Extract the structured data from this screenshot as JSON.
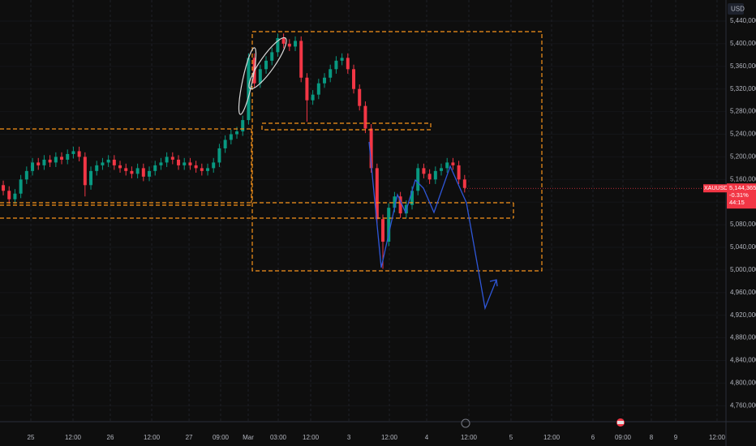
{
  "chart_data": {
    "type": "candlestick",
    "currency": "USD",
    "symbol": "XAUUSD",
    "last_price": {
      "value": 5144.365,
      "label": "5,144,365"
    },
    "change": "-0.31%",
    "countdown": "44:15",
    "up_color": "#089981",
    "down_color": "#f23645",
    "grid": true,
    "open": [
      5150,
      5140,
      5125,
      5135,
      5160,
      5175,
      5190,
      5185,
      5195,
      5190,
      5200,
      5195,
      5205,
      5210,
      5200,
      5150,
      5175,
      5185,
      5190,
      5195,
      5185,
      5180,
      5175,
      5170,
      5180,
      5165,
      5175,
      5185,
      5190,
      5200,
      5195,
      5185,
      5190,
      5185,
      5180,
      5175,
      5180,
      5190,
      5215,
      5230,
      5240,
      5245,
      5265,
      5375,
      5330,
      5355,
      5370,
      5385,
      5410,
      5400,
      5395,
      5405,
      5340,
      5300,
      5310,
      5330,
      5340,
      5355,
      5370,
      5375,
      5355,
      5320,
      5290,
      5250,
      5180,
      5090,
      5050,
      5110,
      5130,
      5100,
      5115,
      5140,
      5180,
      5170,
      5160,
      5175,
      5180,
      5190,
      5185,
      5160
    ],
    "high": [
      5158,
      5148,
      5143,
      5168,
      5183,
      5198,
      5198,
      5203,
      5203,
      5208,
      5208,
      5213,
      5218,
      5218,
      5208,
      5183,
      5193,
      5198,
      5203,
      5203,
      5193,
      5188,
      5183,
      5188,
      5188,
      5183,
      5193,
      5198,
      5208,
      5208,
      5203,
      5198,
      5198,
      5193,
      5188,
      5188,
      5198,
      5223,
      5238,
      5248,
      5253,
      5273,
      5383,
      5383,
      5363,
      5378,
      5393,
      5418,
      5418,
      5408,
      5413,
      5413,
      5348,
      5318,
      5338,
      5348,
      5363,
      5378,
      5383,
      5383,
      5363,
      5328,
      5298,
      5258,
      5188,
      5098,
      5118,
      5138,
      5138,
      5123,
      5148,
      5188,
      5188,
      5178,
      5183,
      5188,
      5198,
      5198,
      5193,
      5168
    ],
    "low": [
      5132,
      5117,
      5117,
      5127,
      5152,
      5167,
      5177,
      5177,
      5182,
      5182,
      5187,
      5187,
      5197,
      5192,
      5130,
      5142,
      5167,
      5177,
      5182,
      5177,
      5172,
      5167,
      5162,
      5162,
      5157,
      5157,
      5167,
      5177,
      5182,
      5187,
      5177,
      5177,
      5177,
      5172,
      5167,
      5167,
      5172,
      5182,
      5207,
      5222,
      5232,
      5237,
      5257,
      5322,
      5322,
      5347,
      5362,
      5377,
      5392,
      5387,
      5387,
      5332,
      5262,
      5292,
      5302,
      5322,
      5332,
      5347,
      5362,
      5347,
      5312,
      5282,
      5242,
      5172,
      5082,
      5002,
      5042,
      5102,
      5092,
      5092,
      5107,
      5132,
      5162,
      5152,
      5152,
      5167,
      5172,
      5177,
      5152,
      5137
    ],
    "close": [
      5140,
      5125,
      5135,
      5160,
      5175,
      5190,
      5185,
      5195,
      5190,
      5200,
      5195,
      5205,
      5210,
      5200,
      5150,
      5175,
      5185,
      5190,
      5195,
      5185,
      5180,
      5175,
      5170,
      5180,
      5165,
      5175,
      5185,
      5190,
      5200,
      5195,
      5185,
      5190,
      5185,
      5180,
      5175,
      5180,
      5190,
      5215,
      5230,
      5240,
      5245,
      5265,
      5375,
      5330,
      5355,
      5370,
      5385,
      5410,
      5400,
      5395,
      5405,
      5340,
      5300,
      5310,
      5330,
      5340,
      5355,
      5370,
      5375,
      5355,
      5320,
      5290,
      5250,
      5180,
      5090,
      5050,
      5110,
      5130,
      5100,
      5115,
      5140,
      5180,
      5170,
      5160,
      5175,
      5180,
      5190,
      5185,
      5160,
      5145
    ],
    "xlim": [
      -0.56,
      123.75
    ],
    "xticks": [
      {
        "value": 4.72,
        "label": "25"
      },
      {
        "value": 11.94,
        "label": "12:00"
      },
      {
        "value": 18.33,
        "label": "26"
      },
      {
        "value": 25.42,
        "label": "12:00"
      },
      {
        "value": 31.81,
        "label": "27"
      },
      {
        "value": 37.22,
        "label": "09:00"
      },
      {
        "value": 41.94,
        "label": "Mar"
      },
      {
        "value": 47.08,
        "label": "03:00"
      },
      {
        "value": 52.64,
        "label": "12:00"
      },
      {
        "value": 59.17,
        "label": "3"
      },
      {
        "value": 66.11,
        "label": "12:00"
      },
      {
        "value": 72.5,
        "label": "4"
      },
      {
        "value": 79.72,
        "label": "12:00"
      },
      {
        "value": 86.94,
        "label": "5"
      },
      {
        "value": 93.89,
        "label": "12:00"
      },
      {
        "value": 100.97,
        "label": "6"
      },
      {
        "value": 106.11,
        "label": "09:00"
      },
      {
        "value": 110.97,
        "label": "8"
      },
      {
        "value": 115.14,
        "label": "9"
      },
      {
        "value": 122.22,
        "label": "12:00"
      }
    ],
    "ylim": [
      4731.8,
      5477.3
    ],
    "yticks": [
      {
        "value": 5440,
        "label": "5,440,000"
      },
      {
        "value": 5400,
        "label": "5,400,000"
      },
      {
        "value": 5360,
        "label": "5,360,000"
      },
      {
        "value": 5320,
        "label": "5,320,000"
      },
      {
        "value": 5280,
        "label": "5,280,000"
      },
      {
        "value": 5240,
        "label": "5,240,000"
      },
      {
        "value": 5200,
        "label": "5,200,000"
      },
      {
        "value": 5160,
        "label": "5,160,000"
      },
      {
        "value": 5120,
        "label": "5,120,000"
      },
      {
        "value": 5080,
        "label": "5,080,000"
      },
      {
        "value": 5040,
        "label": "5,040,000"
      },
      {
        "value": 5000,
        "label": "5,000,000"
      },
      {
        "value": 4960,
        "label": "4,960,000"
      },
      {
        "value": 4920,
        "label": "4,920,000"
      },
      {
        "value": 4880,
        "label": "4,880,000"
      },
      {
        "value": 4840,
        "label": "4,840,000"
      },
      {
        "value": 4800,
        "label": "4,800,000"
      },
      {
        "value": 4760,
        "label": "4,760,000"
      }
    ]
  }
}
